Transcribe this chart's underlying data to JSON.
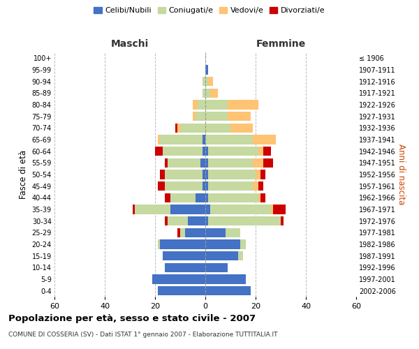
{
  "age_groups": [
    "0-4",
    "5-9",
    "10-14",
    "15-19",
    "20-24",
    "25-29",
    "30-34",
    "35-39",
    "40-44",
    "45-49",
    "50-54",
    "55-59",
    "60-64",
    "65-69",
    "70-74",
    "75-79",
    "80-84",
    "85-89",
    "90-94",
    "95-99",
    "100+"
  ],
  "birth_years": [
    "2002-2006",
    "1997-2001",
    "1992-1996",
    "1987-1991",
    "1982-1986",
    "1977-1981",
    "1972-1976",
    "1967-1971",
    "1962-1966",
    "1957-1961",
    "1952-1956",
    "1947-1951",
    "1942-1946",
    "1937-1941",
    "1932-1936",
    "1927-1931",
    "1922-1926",
    "1917-1921",
    "1912-1916",
    "1907-1911",
    "≤ 1906"
  ],
  "male": {
    "celibe": [
      19,
      21,
      16,
      17,
      18,
      8,
      7,
      14,
      4,
      1,
      1,
      2,
      1,
      1,
      0,
      0,
      0,
      0,
      0,
      0,
      0
    ],
    "coniugato": [
      0,
      0,
      0,
      0,
      1,
      2,
      8,
      14,
      10,
      15,
      15,
      13,
      16,
      17,
      10,
      4,
      3,
      1,
      1,
      0,
      0
    ],
    "vedovo": [
      0,
      0,
      0,
      0,
      0,
      0,
      0,
      0,
      0,
      0,
      0,
      0,
      0,
      1,
      1,
      1,
      2,
      0,
      0,
      0,
      0
    ],
    "divorziato": [
      0,
      0,
      0,
      0,
      0,
      1,
      1,
      1,
      2,
      3,
      2,
      1,
      3,
      0,
      1,
      0,
      0,
      0,
      0,
      0,
      0
    ]
  },
  "female": {
    "nubile": [
      18,
      16,
      9,
      13,
      14,
      8,
      1,
      2,
      1,
      1,
      1,
      1,
      1,
      0,
      0,
      0,
      0,
      0,
      0,
      1,
      0
    ],
    "coniugata": [
      0,
      0,
      0,
      2,
      2,
      6,
      29,
      24,
      20,
      18,
      19,
      18,
      20,
      19,
      10,
      9,
      9,
      2,
      1,
      0,
      0
    ],
    "vedova": [
      0,
      0,
      0,
      0,
      0,
      0,
      0,
      1,
      1,
      2,
      2,
      4,
      2,
      9,
      9,
      9,
      12,
      3,
      2,
      0,
      0
    ],
    "divorziata": [
      0,
      0,
      0,
      0,
      0,
      0,
      1,
      5,
      2,
      2,
      2,
      4,
      3,
      0,
      0,
      0,
      0,
      0,
      0,
      0,
      0
    ]
  },
  "colors": {
    "celibe": "#4472c4",
    "coniugato": "#c5d9a0",
    "vedovo": "#ffc374",
    "divorziato": "#cc0000"
  },
  "xlim": 60,
  "title": "Popolazione per età, sesso e stato civile - 2007",
  "subtitle": "COMUNE DI COSSERIA (SV) - Dati ISTAT 1° gennaio 2007 - Elaborazione TUTTITALIA.IT",
  "ylabel_left": "Fasce di età",
  "ylabel_right": "Anni di nascita",
  "label_maschi": "Maschi",
  "label_femmine": "Femmine",
  "legend_labels": [
    "Celibi/Nubili",
    "Coniugati/e",
    "Vedovi/e",
    "Divorziati/e"
  ],
  "bg_color": "#ffffff",
  "grid_color": "#bbbbbb"
}
